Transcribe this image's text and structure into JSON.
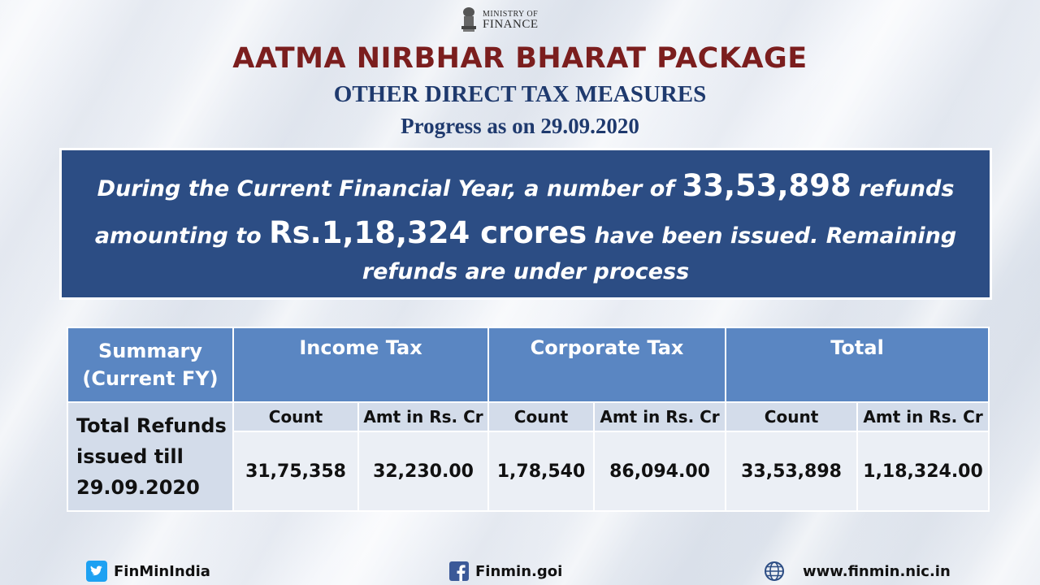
{
  "logo": {
    "line1": "MINISTRY OF",
    "line2": "FINANCE",
    "icon": "national-emblem-icon"
  },
  "header": {
    "title": "AATMA NIRBHAR BHARAT PACKAGE",
    "subtitle": "OTHER DIRECT TAX MEASURES",
    "progress": "Progress as on 29.09.2020"
  },
  "banner": {
    "part1": "During the Current Financial Year, a number of ",
    "refund_count": "33,53,898",
    "part2": " refunds",
    "part3": "amounting to ",
    "amount": "Rs.1,18,324 crores",
    "part4": " have been issued. Remaining",
    "part5": "refunds are under process"
  },
  "table": {
    "summary_header": "Summary (Current FY)",
    "groups": [
      "Income Tax",
      "Corporate Tax",
      "Total"
    ],
    "sub_headers": [
      "Count",
      "Amt in Rs. Cr",
      "Count",
      "Amt in Rs. Cr",
      "Count",
      "Amt in Rs. Cr"
    ],
    "row_label": "Total Refunds issued till 29.09.2020",
    "values": [
      "31,75,358",
      "32,230.00",
      "1,78,540",
      "86,094.00",
      "33,53,898",
      "1,18,324.00"
    ]
  },
  "footer": {
    "twitter": "FinMinIndia",
    "facebook": "Finmin.goi",
    "website": "www.finmin.nic.in"
  },
  "colors": {
    "title": "#7b1e1e",
    "subtitle": "#1f3a6e",
    "banner_bg": "#2c4d84",
    "table_header": "#5a86c2"
  }
}
